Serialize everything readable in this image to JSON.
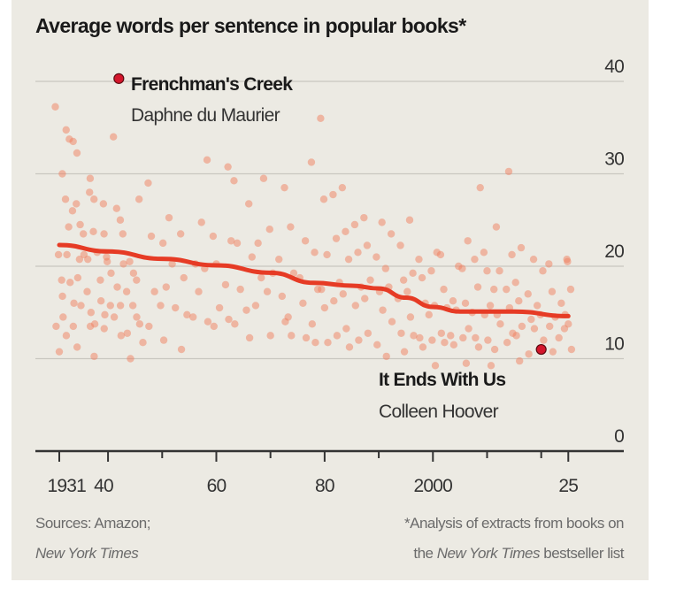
{
  "chart_data": {
    "type": "scatter",
    "title": "Average words per sentence in popular books*",
    "xlabel": "",
    "ylabel": "",
    "xlim": [
      1929,
      2034
    ],
    "ylim": [
      0,
      40
    ],
    "grid": true,
    "x_ticks": [
      1931,
      1940,
      1950,
      1960,
      1970,
      1980,
      1990,
      2000,
      2010,
      2020,
      2025
    ],
    "x_tick_labels": [
      {
        "value": 1931,
        "label": "1931"
      },
      {
        "value": 1940,
        "label": "40"
      },
      {
        "value": 1960,
        "label": "60"
      },
      {
        "value": 1980,
        "label": "80"
      },
      {
        "value": 2000,
        "label": "2000"
      },
      {
        "value": 2025,
        "label": "25"
      }
    ],
    "y_ticks": [
      {
        "value": 0,
        "label": "0"
      },
      {
        "value": 10,
        "label": "10"
      },
      {
        "value": 20,
        "label": "20"
      },
      {
        "value": 30,
        "label": "30"
      },
      {
        "value": 40,
        "label": "40"
      }
    ],
    "points_by_year": {
      "1931": [
        38,
        21,
        19,
        13,
        11,
        16
      ],
      "1932": [
        30,
        28,
        24,
        15,
        12
      ],
      "1933": [
        35,
        33,
        26,
        22,
        18,
        14
      ],
      "1934": [
        33,
        27,
        20,
        16,
        12
      ],
      "1935": [
        32,
        25,
        23,
        19,
        15
      ],
      "1936": [
        28,
        22,
        17,
        14
      ],
      "1937": [
        29,
        24,
        20,
        15,
        11
      ],
      "1938": [
        27,
        22,
        18,
        14
      ],
      "1939": [
        26,
        21,
        17,
        13
      ],
      "1940": [
        24,
        20,
        16,
        14
      ],
      "1941": [
        34,
        27,
        19,
        15
      ],
      "1942": [
        23,
        18,
        15
      ],
      "1943": [
        25,
        21,
        17,
        13
      ],
      "1944": [
        20,
        16,
        12,
        10
      ],
      "1945": [
        28,
        19,
        15
      ],
      "1946": [
        18,
        14,
        11
      ],
      "1948": [
        29,
        24,
        17,
        14
      ],
      "1950": [
        22,
        18,
        15,
        12
      ],
      "1952": [
        26,
        20,
        16
      ],
      "1954": [
        23,
        19,
        14,
        11
      ],
      "1956": [
        21,
        17,
        15
      ],
      "1958": [
        31,
        25,
        19,
        14
      ],
      "1960": [
        24,
        20,
        16,
        13
      ],
      "1962": [
        31,
        22,
        18,
        15
      ],
      "1964": [
        29,
        23,
        17,
        14
      ],
      "1966": [
        26,
        21,
        16,
        12
      ],
      "1968": [
        30,
        22,
        19,
        15
      ],
      "1970": [
        24,
        20,
        17,
        13
      ],
      "1972": [
        28,
        21,
        16,
        14
      ],
      "1974": [
        25,
        19,
        15,
        12
      ],
      "1976": [
        23,
        18,
        16,
        13
      ],
      "1978": [
        31,
        22,
        17,
        14,
        11
      ],
      "1980": [
        36,
        28,
        21,
        18,
        15,
        12
      ],
      "1982": [
        27,
        23,
        19,
        16,
        13
      ],
      "1984": [
        28,
        24,
        20,
        17,
        14,
        11
      ],
      "1986": [
        25,
        21,
        18,
        15,
        12
      ],
      "1988": [
        26,
        22,
        19,
        16,
        13
      ],
      "1990": [
        24,
        21,
        18,
        15,
        12
      ],
      "1992": [
        23,
        20,
        17,
        14,
        11
      ],
      "1994": [
        22,
        19,
        16,
        13,
        10
      ],
      "1996": [
        25,
        20,
        17,
        15,
        12
      ],
      "1998": [
        21,
        18,
        16,
        13,
        11
      ],
      "2000": [
        22,
        19,
        16,
        14,
        12,
        10
      ],
      "2002": [
        21,
        18,
        15,
        13,
        11
      ],
      "2004": [
        20,
        17,
        15,
        13,
        11
      ],
      "2006": [
        23,
        19,
        16,
        14,
        12,
        10
      ],
      "2008": [
        28,
        21,
        17,
        15,
        13,
        11
      ],
      "2010": [
        22,
        19,
        16,
        14,
        12,
        10
      ],
      "2012": [
        24,
        20,
        17,
        15,
        13,
        11
      ],
      "2014": [
        31,
        21,
        18,
        15,
        13,
        11
      ],
      "2016": [
        22,
        19,
        16,
        14,
        12,
        10
      ],
      "2018": [
        20,
        17,
        15,
        13,
        11
      ],
      "2020": [
        19,
        16,
        14,
        12
      ],
      "2022": [
        21,
        17,
        15,
        13,
        11
      ],
      "2024": [
        20,
        16,
        14,
        12
      ],
      "2025": [
        21,
        17,
        15,
        13,
        11
      ]
    },
    "trend": [
      [
        1931,
        22.3
      ],
      [
        1940,
        21.6
      ],
      [
        1950,
        20.8
      ],
      [
        1960,
        20.1
      ],
      [
        1970,
        19.3
      ],
      [
        1978,
        18.2
      ],
      [
        1985,
        17.9
      ],
      [
        1990,
        17.6
      ],
      [
        1995,
        16.6
      ],
      [
        2000,
        15.6
      ],
      [
        2005,
        15.1
      ],
      [
        2015,
        15.1
      ],
      [
        2025,
        14.6
      ]
    ],
    "highlights": [
      {
        "year": 1942,
        "value": 40.3,
        "label": "Frenchman's Creek",
        "sublabel": "Daphne du Maurier"
      },
      {
        "year": 2020,
        "value": 11,
        "label": "It Ends With Us",
        "sublabel": "Colleen Hoover"
      }
    ],
    "source_line1": "Sources: Amazon;",
    "source_line2": "New York Times",
    "footnote_line1": "*Analysis of extracts from books on",
    "footnote_line2_pre": "the ",
    "footnote_line2_italic": "New York Times",
    "footnote_line2_post": " bestseller list",
    "colors": {
      "background": "#eceae3",
      "dots": "#f0805f",
      "trend": "#e63b25",
      "highlight": "#d4162c",
      "grid": "#c9c7c0",
      "axis": "#333333"
    }
  }
}
